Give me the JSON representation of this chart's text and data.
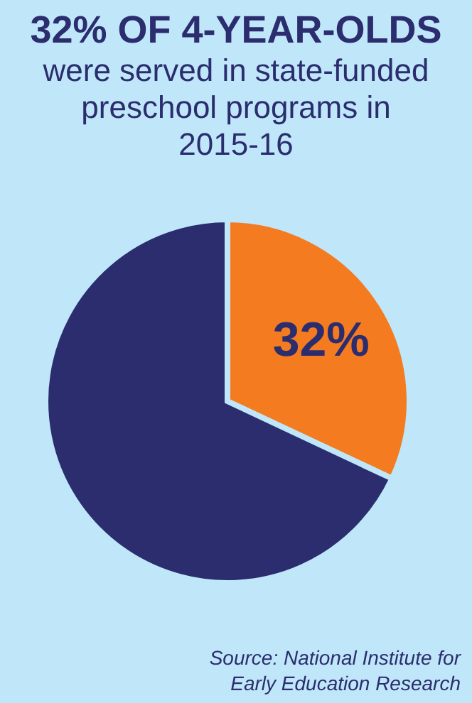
{
  "chart_data": {
    "type": "pie",
    "title": "32% OF 4-YEAR-OLDS",
    "subtitle": "were served in state-funded preschool programs in 2015-16",
    "categories": [
      null,
      null
    ],
    "values": [
      32,
      68
    ],
    "colors": [
      "#f47b20",
      "#2b2d6e"
    ],
    "value_labels": [
      "32%",
      null
    ],
    "annotations": [
      "Source: National Institute for Early Education Research"
    ]
  }
}
